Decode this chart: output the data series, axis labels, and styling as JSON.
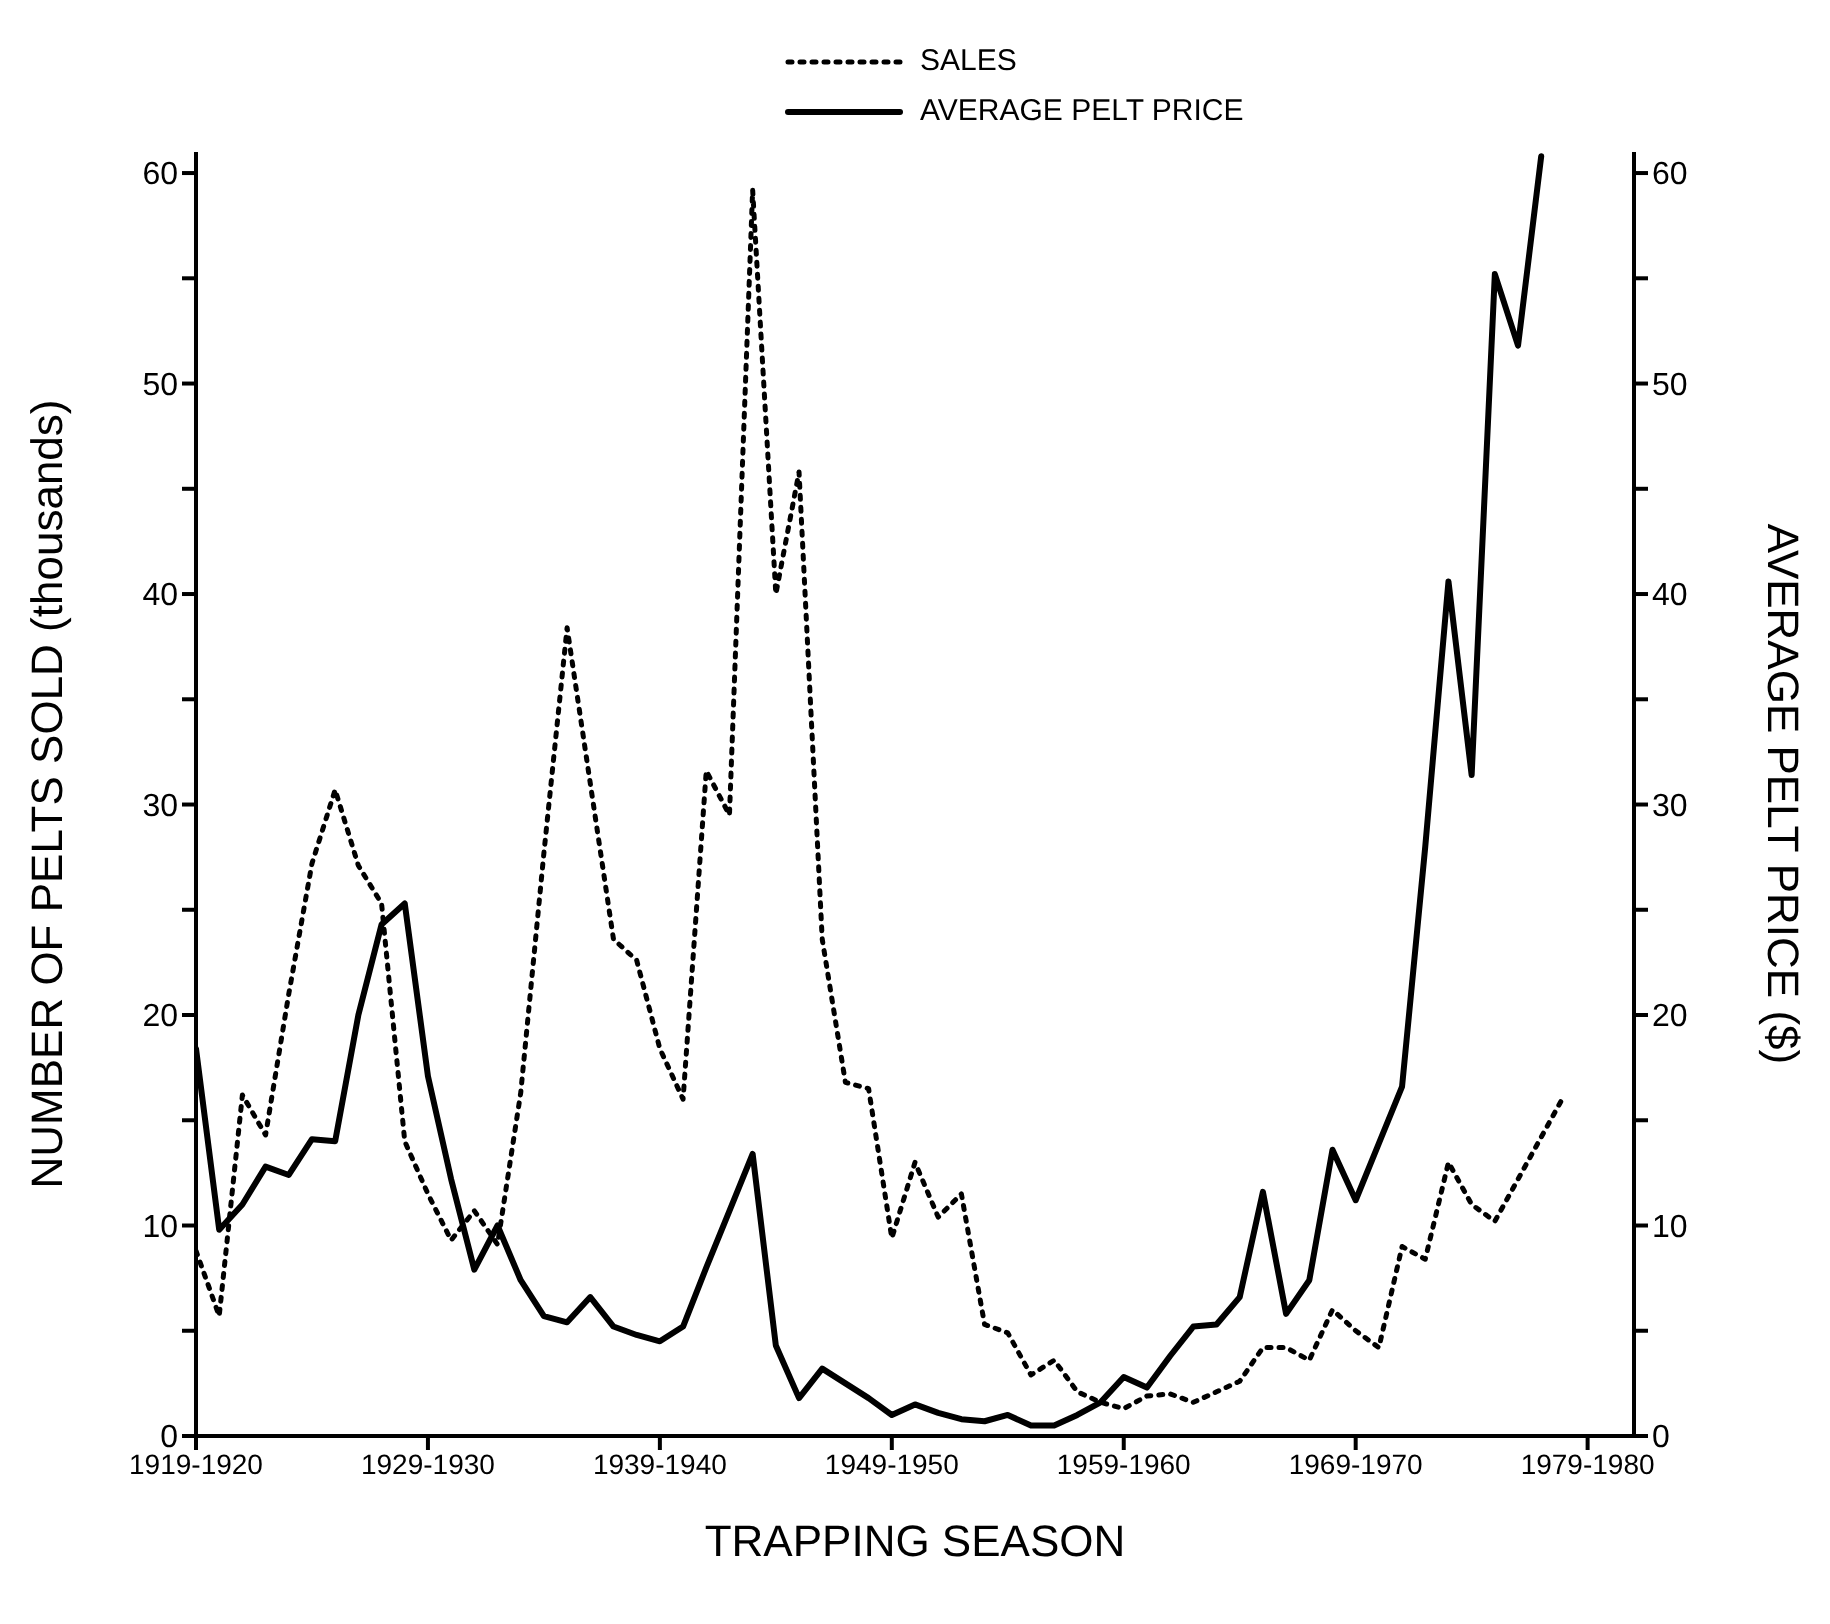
{
  "chart_data": {
    "type": "line",
    "xlabel": "TRAPPING SEASON",
    "ylabel": "NUMBER OF PELTS SOLD (thousands)",
    "y2label": "AVERAGE PELT PRICE ($)",
    "categories": [
      "1919-1920",
      null,
      null,
      null,
      null,
      null,
      null,
      null,
      null,
      null,
      "1929-1930",
      null,
      null,
      null,
      null,
      null,
      null,
      null,
      null,
      null,
      "1939-1940",
      null,
      null,
      null,
      null,
      null,
      null,
      null,
      null,
      null,
      "1949-1950",
      null,
      null,
      null,
      null,
      null,
      null,
      null,
      null,
      null,
      "1959-1960",
      null,
      null,
      null,
      null,
      null,
      null,
      null,
      null,
      null,
      "1969-1970",
      null,
      null,
      null,
      null,
      null,
      null,
      null,
      null,
      null,
      "1979-1980",
      null,
      null
    ],
    "ylim": [
      0,
      61
    ],
    "yticks": [
      0,
      {
        "value": 5,
        "label": null
      },
      10,
      {
        "value": 15,
        "label": null
      },
      20,
      {
        "value": 25,
        "label": null
      },
      30,
      {
        "value": 35,
        "label": null
      },
      40,
      {
        "value": 45,
        "label": null
      },
      50,
      {
        "value": 55,
        "label": null
      },
      60
    ],
    "y2lim": [
      0,
      61
    ],
    "y2ticks": [
      0,
      {
        "value": 5,
        "label": null
      },
      10,
      {
        "value": 15,
        "label": null
      },
      20,
      {
        "value": 25,
        "label": null
      },
      30,
      {
        "value": 35,
        "label": null
      },
      40,
      {
        "value": 45,
        "label": null
      },
      50,
      {
        "value": 55,
        "label": null
      },
      60
    ],
    "legend": "top",
    "grid": false,
    "marker": "none",
    "series": [
      {
        "name": "SALES",
        "color": "#000000",
        "line_style": "dotted",
        "values": [
          8.8,
          5.7,
          16.2,
          14.3,
          21,
          27.2,
          30.7,
          27.1,
          25.3,
          14,
          11.5,
          9.3,
          10.7,
          9.1,
          16.3,
          27.7,
          38.4,
          31,
          23.6,
          22.6,
          18.4,
          16,
          31.6,
          29.5,
          59.2,
          40,
          45.8,
          23.6,
          16.8,
          16.5,
          9.4,
          13,
          10.4,
          11.5,
          5.3,
          4.9,
          2.9,
          3.6,
          2.1,
          1.6,
          1.3,
          1.9,
          2,
          1.6,
          2.1,
          2.6,
          4.2,
          4.2,
          3.6,
          6,
          5,
          4.2,
          9,
          8.4,
          13,
          11,
          10.2,
          12.2,
          14.2,
          16.2,
          null,
          null,
          null
        ]
      },
      {
        "name": "AVERAGE PELT PRICE",
        "color": "#000000",
        "line_style": "solid",
        "axis": "y2",
        "values": [
          18.4,
          9.8,
          11,
          12.8,
          12.4,
          14.1,
          14,
          20,
          24.3,
          25.3,
          17.1,
          12.2,
          7.9,
          10,
          7.4,
          5.7,
          5.4,
          6.6,
          5.2,
          4.8,
          4.5,
          5.2,
          8,
          10.7,
          13.4,
          4.3,
          1.8,
          3.2,
          2.5,
          1.8,
          1,
          1.5,
          1.1,
          0.8,
          0.7,
          1,
          0.5,
          0.5,
          1,
          1.6,
          2.8,
          2.3,
          3.8,
          5.2,
          5.3,
          6.6,
          11.6,
          5.8,
          7.4,
          13.6,
          11.2,
          13.9,
          16.6,
          28,
          40.6,
          31.4,
          55.2,
          51.8,
          60.8,
          null,
          null,
          null,
          null
        ]
      }
    ]
  }
}
